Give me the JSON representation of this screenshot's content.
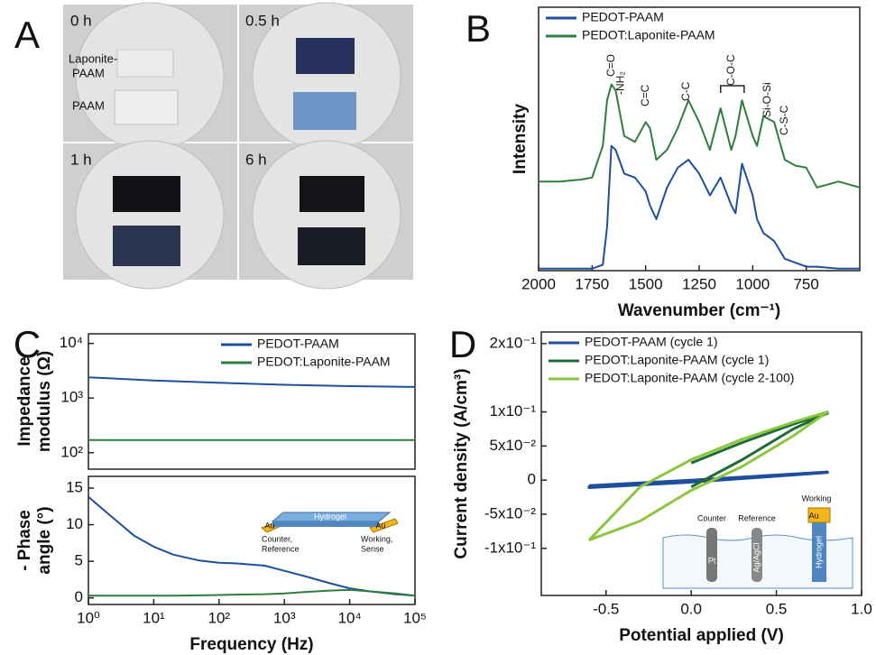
{
  "photo_panel": {
    "panel_label": "A",
    "photos": [
      {
        "time": "0 h"
      },
      {
        "time": "0.5 h"
      },
      {
        "time": "1 h"
      },
      {
        "time": "6 h"
      }
    ],
    "sample_labels": {
      "top": [
        "Laponite-",
        "PAAM"
      ],
      "bottom": "PAAM"
    }
  },
  "chart_data": [
    {
      "type": "line",
      "panel_label": "B",
      "xlabel": "Wavenumber (cm⁻¹)",
      "ylabel": "Intensity",
      "x": [
        2000,
        1900,
        1800,
        1750,
        1700,
        1680,
        1660,
        1640,
        1600,
        1550,
        1500,
        1480,
        1450,
        1400,
        1350,
        1300,
        1250,
        1200,
        1150,
        1100,
        1080,
        1050,
        1000,
        980,
        950,
        900,
        850,
        800,
        750,
        700,
        600,
        500
      ],
      "series": [
        {
          "name": "PEDOT-PAAM",
          "color": "#1f4e9c",
          "values": [
            1,
            1,
            1,
            1,
            3,
            22,
            63,
            61,
            49,
            47,
            40,
            33,
            26,
            42,
            52,
            56,
            49,
            38,
            47,
            33,
            29,
            54,
            38,
            26,
            19,
            15,
            6,
            4,
            2,
            2,
            1,
            1
          ]
        },
        {
          "name": "PEDOT:Laponite-PAAM",
          "color": "#2e7d3e",
          "values": [
            45,
            45,
            46,
            47,
            63,
            86,
            94,
            91,
            68,
            65,
            75,
            72,
            56,
            61,
            72,
            86,
            75,
            61,
            82,
            61,
            68,
            86,
            68,
            63,
            78,
            75,
            56,
            53,
            52,
            42,
            45,
            42
          ]
        }
      ],
      "annotations": [
        "C=O",
        "-NH₂",
        "C=C",
        "C-C",
        "C-O-C",
        "Si-O-Si",
        "C-S-C"
      ],
      "annotation_x": [
        1660,
        1615,
        1500,
        1310,
        1100,
        930,
        850
      ],
      "xlim": [
        2000,
        500
      ],
      "ylim": [
        0,
        133
      ],
      "xticks": [
        2000,
        1750,
        1500,
        1250,
        1000,
        750
      ],
      "grid": false,
      "legend": "upper left"
    },
    {
      "type": "line",
      "panel_label": "C",
      "ylabel": [
        "Impedance",
        "modulus (Ω)"
      ],
      "x": [
        1,
        10,
        100,
        1000,
        10000,
        100000
      ],
      "series": [
        {
          "name": "PEDOT-PAAM",
          "color": "#1f4e9c",
          "values": [
            2400,
            2100,
            1900,
            1750,
            1650,
            1600
          ]
        },
        {
          "name": "PEDOT:Laponite-PAAM",
          "color": "#2e7d3e",
          "values": [
            170,
            170,
            170,
            170,
            170,
            170
          ]
        }
      ],
      "xscale": "log",
      "yscale": "log",
      "xlim": [
        1,
        100000
      ],
      "ylim": [
        50,
        15000
      ],
      "yticks": [
        {
          "value": 100,
          "label": "10²"
        },
        {
          "value": 1000,
          "label": "10³"
        },
        {
          "value": 10000,
          "label": "10⁴"
        }
      ],
      "grid": false,
      "legend": "upper right"
    },
    {
      "type": "line",
      "xlabel": "Frequency (Hz)",
      "ylabel": [
        "- Phase",
        "angle (°)"
      ],
      "x": [
        1,
        2,
        5,
        10,
        20,
        50,
        100,
        200,
        500,
        1000,
        2000,
        5000,
        10000,
        20000,
        50000,
        100000
      ],
      "series": [
        {
          "name": "PEDOT-PAAM",
          "color": "#1f4e9c",
          "values": [
            13.8,
            11.5,
            8.5,
            7,
            5.9,
            5.1,
            4.8,
            4.7,
            4.4,
            3.7,
            3,
            2,
            1.3,
            0.9,
            0.5,
            0.3
          ]
        },
        {
          "name": "PEDOT:Laponite-PAAM",
          "color": "#2e7d3e",
          "values": [
            0.3,
            0.3,
            0.3,
            0.3,
            0.3,
            0.35,
            0.4,
            0.45,
            0.5,
            0.6,
            0.8,
            1.0,
            1.1,
            0.9,
            0.6,
            0.3
          ]
        }
      ],
      "xscale": "log",
      "xlim": [
        1,
        100000
      ],
      "ylim": [
        -0.9,
        16.6
      ],
      "xticks": [
        {
          "value": 1,
          "label": "10⁰"
        },
        {
          "value": 10,
          "label": "10¹"
        },
        {
          "value": 100,
          "label": "10²"
        },
        {
          "value": 1000,
          "label": "10³"
        },
        {
          "value": 10000,
          "label": "10⁴"
        },
        {
          "value": 100000,
          "label": "10⁵"
        }
      ],
      "yticks": [
        0,
        5,
        10,
        15
      ],
      "grid": false,
      "inset": {
        "hydrogel": "Hydrogel",
        "electrode_left": "Au",
        "electrode_right": "Au",
        "left_label": [
          "Counter,",
          "Reference"
        ],
        "right_label": [
          "Working,",
          "Sense"
        ]
      }
    },
    {
      "type": "line",
      "panel_label": "D",
      "xlabel": "Potential applied (V)",
      "ylabel": "Current density (A/cm³)",
      "series": [
        {
          "name": "PEDOT-PAAM (cycle 1)",
          "color": "#1f4e9c",
          "x": [
            -0.6,
            -0.3,
            0,
            0.4,
            0.8,
            0.8,
            0.4,
            0,
            -0.3,
            -0.6,
            -0.6
          ],
          "values": [
            -0.008,
            -0.004,
            0.0,
            0.006,
            0.012,
            0.011,
            0.004,
            -0.003,
            -0.007,
            -0.011,
            -0.008
          ]
        },
        {
          "name": "PEDOT:Laponite-PAAM (cycle 1)",
          "color": "#1e6b35",
          "x": [
            0,
            0.3,
            0.6,
            0.8,
            0.6,
            0.3,
            0
          ],
          "values": [
            -0.01,
            0.03,
            0.075,
            0.098,
            0.082,
            0.055,
            0.025
          ]
        },
        {
          "name": "PEDOT:Laponite-PAAM (cycle 2-100)",
          "color": "#8cc63f",
          "x": [
            -0.6,
            -0.3,
            0,
            0.3,
            0.6,
            0.8,
            0.6,
            0.3,
            0,
            -0.3,
            -0.6
          ],
          "values": [
            -0.088,
            -0.06,
            -0.015,
            0.02,
            0.065,
            0.1,
            0.085,
            0.06,
            0.03,
            -0.01,
            -0.088
          ]
        }
      ],
      "xlim": [
        -0.88,
        1.0
      ],
      "ylim": [
        -0.169,
        0.217
      ],
      "xticks": [
        -0.5,
        {
          "value": 0,
          "label": "0.0"
        },
        0.5,
        {
          "value": 1,
          "label": "1.0"
        }
      ],
      "yticks": [
        {
          "value": 0.2,
          "label": "2x10⁻¹"
        },
        {
          "value": 0.1,
          "label": "1x10⁻¹"
        },
        {
          "value": 0.05,
          "label": "5x10⁻²"
        },
        0,
        {
          "value": -0.05,
          "label": "-5x10⁻²"
        },
        {
          "value": -0.1,
          "label": "-1x10⁻¹"
        }
      ],
      "grid": false,
      "legend": "upper left",
      "inset": {
        "counter": "Counter",
        "reference": "Reference",
        "working": "Working",
        "au": "Au",
        "pt": "Pt",
        "ref_electrode": "Ag/AgCl",
        "hydrogel": "Hydrogel"
      }
    }
  ]
}
